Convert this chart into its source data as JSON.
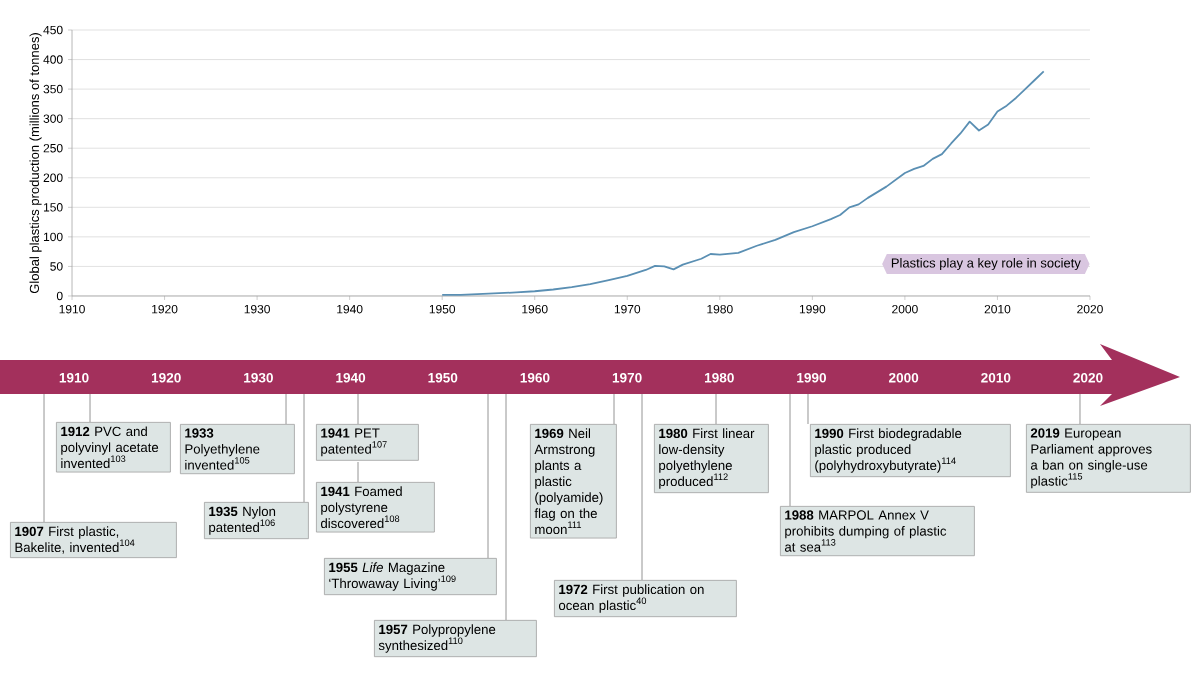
{
  "chart_data": [
    {
      "type": "line",
      "ylabel": "Global plastics production (millions of tonnes)",
      "x": [
        1950,
        1952,
        1955,
        1958,
        1960,
        1962,
        1964,
        1966,
        1968,
        1970,
        1972,
        1973,
        1974,
        1975,
        1976,
        1978,
        1979,
        1980,
        1982,
        1984,
        1986,
        1988,
        1990,
        1992,
        1993,
        1994,
        1995,
        1996,
        1998,
        2000,
        2001,
        2002,
        2003,
        2004,
        2005,
        2006,
        2007,
        2008,
        2009,
        2010,
        2011,
        2012,
        2013,
        2014,
        2015
      ],
      "values": [
        2,
        2,
        4,
        6,
        8,
        11,
        15,
        20,
        27,
        34,
        44,
        51,
        50,
        45,
        53,
        63,
        71,
        70,
        73,
        85,
        95,
        108,
        118,
        130,
        137,
        150,
        155,
        166,
        185,
        208,
        215,
        220,
        232,
        240,
        258,
        275,
        295,
        280,
        290,
        312,
        322,
        335,
        350,
        365,
        380
      ],
      "color": "#5a8fb3",
      "xlim": [
        1910,
        2020
      ],
      "xticks": [
        1910,
        1920,
        1930,
        1940,
        1950,
        1960,
        1970,
        1980,
        1990,
        2000,
        2010,
        2020
      ],
      "ylim": [
        0,
        450
      ],
      "yticks": [
        0,
        50,
        100,
        150,
        200,
        250,
        300,
        350,
        400,
        450
      ],
      "grid": "y",
      "x2lim": [
        1910,
        2020
      ],
      "x2ticks": [
        1910,
        1920,
        1930,
        1940,
        1950,
        1960,
        1970,
        1980,
        1990,
        2000,
        2010,
        2020
      ],
      "annotations": [
        "Plastics play a key role in society"
      ]
    },
    {
      "type": "other",
      "color": "#dde5e4",
      "annotations": [
        "**1907** First plastic, Bakelite, invented$^{104}$",
        "**1912** PVC and polyvinyl acetate invented$^{103}$",
        "**1933** Polyethylene invented$^{105}$",
        "**1935** Nylon patented$^{106}$",
        "**1941** PET patented$^{107}$",
        "**1941** Foamed polystyrene discovered$^{108}$",
        "**1955** *Life* Magazine ‘Throwaway Living’$^{109}$",
        "**1957** Polypropylene synthesized$^{110}$",
        "**1969** Neil Armstrong plants a plastic (polyamide) flag on the moon$^{111}$",
        "**1972** First publication on ocean plastic$^{40}$",
        "**1980** First linear low-density polyethylene produced$^{112}$",
        "**1988** MARPOL Annex V prohibits dumping of plastic at sea$^{113}$",
        "**1990** First biodegradable plastic produced (polyhydroxybutyrate)$^{114}$",
        "**2019** European Parliament approves a ban on single-use plastic$^{115}$"
      ]
    }
  ]
}
